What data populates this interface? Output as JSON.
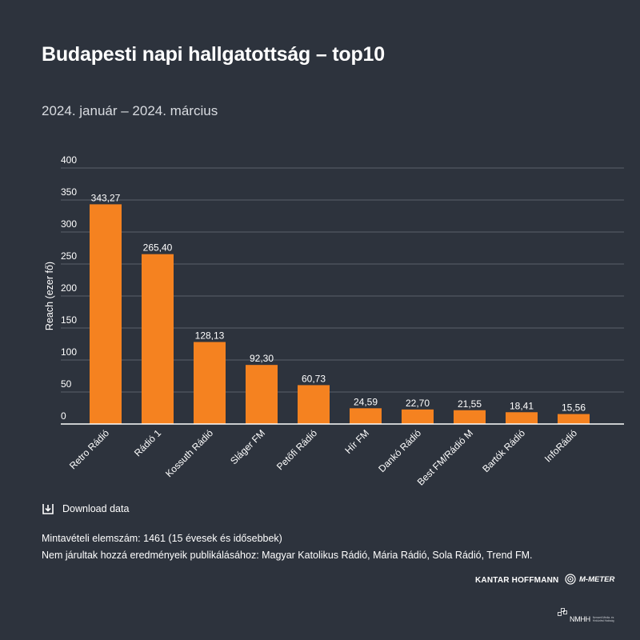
{
  "title": "Budapesti napi hallgatottság – top10",
  "subtitle": "2024. január – 2024. március",
  "download_label": "Download data",
  "notes": [
    "Mintavételi elemszám: 1461 (15 évesek és idősebbek)",
    "Nem járultak hozzá eredményeik publikálásához: Magyar Katolikus Rádió, Mária Rádió, Sola Rádió, Trend FM."
  ],
  "logos": {
    "kantar": "KANTAR HOFFMANN",
    "mmeter": "M-METER",
    "nmhh": "NMHH",
    "nmhh_tagline": "Nemzeti Média- és Hírközlési Hatóság"
  },
  "colors": {
    "background": "#2d333d",
    "bar": "#f58220",
    "gridline": "#5a616c",
    "baseline": "#ffffff",
    "text": "#ffffff"
  },
  "chart_data": {
    "type": "bar",
    "title": "Budapesti napi hallgatottság – top10",
    "subtitle": "2024. január – 2024. március",
    "xlabel": "",
    "ylabel": "Reach (ezer fő)",
    "ylim": [
      0,
      400
    ],
    "yticks": [
      "0",
      "50",
      "100",
      "150",
      "200",
      "250",
      "300",
      "350",
      "400"
    ],
    "grid": true,
    "categories": [
      "Retro Rádió",
      "Rádió 1",
      "Kossuth Rádió",
      "Sláger FM",
      "Petőfi Rádió",
      "Hír FM",
      "Dankó Rádió",
      "Best FM/Rádió M",
      "Bartók Rádió",
      "InfoRádió"
    ],
    "values": [
      343.27,
      265.4,
      128.13,
      92.3,
      60.73,
      24.59,
      22.7,
      21.55,
      18.41,
      15.56
    ],
    "value_labels": [
      "343,27",
      "265,40",
      "128,13",
      "92,30",
      "60,73",
      "24,59",
      "22,70",
      "21,55",
      "18,41",
      "15,56"
    ]
  }
}
